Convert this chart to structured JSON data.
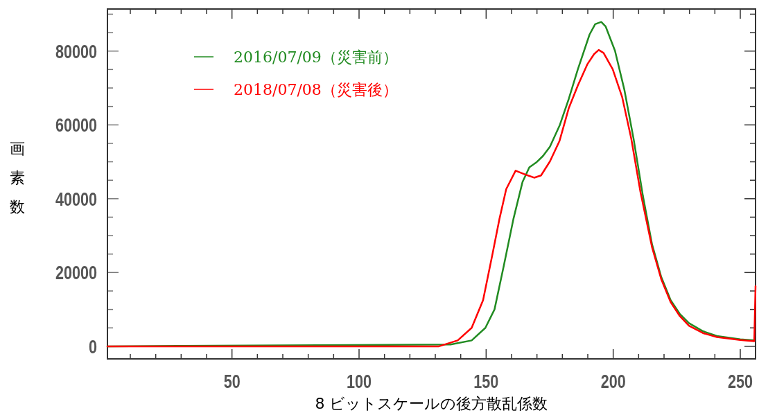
{
  "chart_data": {
    "type": "line",
    "xlabel": "8 ビットスケールの後方散乱係数",
    "ylabel": "画素数",
    "xlim": [
      1,
      256
    ],
    "ylim": [
      -3400,
      91400
    ],
    "xticks": [
      {
        "value": 10,
        "label": null
      },
      {
        "value": 20,
        "label": null
      },
      {
        "value": 30,
        "label": null
      },
      {
        "value": 40,
        "label": null
      },
      50,
      {
        "value": 60,
        "label": null
      },
      {
        "value": 70,
        "label": null
      },
      {
        "value": 80,
        "label": null
      },
      {
        "value": 90,
        "label": null
      },
      100,
      {
        "value": 110,
        "label": null
      },
      {
        "value": 120,
        "label": null
      },
      {
        "value": 130,
        "label": null
      },
      {
        "value": 140,
        "label": null
      },
      150,
      {
        "value": 160,
        "label": null
      },
      {
        "value": 170,
        "label": null
      },
      {
        "value": 180,
        "label": null
      },
      {
        "value": 190,
        "label": null
      },
      200,
      {
        "value": 210,
        "label": null
      },
      {
        "value": 220,
        "label": null
      },
      {
        "value": 230,
        "label": null
      },
      {
        "value": 240,
        "label": null
      },
      250
    ],
    "yticks": [
      0,
      {
        "value": 5000,
        "label": null
      },
      {
        "value": 10000,
        "label": null
      },
      {
        "value": 15000,
        "label": null
      },
      20000,
      {
        "value": 25000,
        "label": null
      },
      {
        "value": 30000,
        "label": null
      },
      {
        "value": 35000,
        "label": null
      },
      40000,
      {
        "value": 45000,
        "label": null
      },
      {
        "value": 50000,
        "label": null
      },
      {
        "value": 55000,
        "label": null
      },
      60000,
      {
        "value": 65000,
        "label": null
      },
      {
        "value": 70000,
        "label": null
      },
      {
        "value": 75000,
        "label": null
      },
      80000,
      {
        "value": 85000,
        "label": null
      },
      {
        "value": 90000,
        "label": null
      }
    ],
    "legend": "top left",
    "marker": "none",
    "line_style": "solid",
    "series": [
      {
        "name": "2016/07/09（災害前）",
        "color": "#218b21",
        "x": [
          1,
          136,
          144.3,
          149.7,
          153.3,
          157,
          160.7,
          164.3,
          167,
          169.7,
          172.4,
          175.1,
          178.9,
          182.5,
          186.1,
          190.7,
          192.9,
          195.3,
          197,
          200.7,
          204.4,
          208,
          211.7,
          215.3,
          218.9,
          222.6,
          226.2,
          229.8,
          235.3,
          240.8,
          250,
          255.5
        ],
        "values": [
          0,
          500,
          1600,
          5000,
          10000,
          22000,
          34400,
          44500,
          48500,
          49800,
          51600,
          54100,
          59800,
          67000,
          75100,
          84500,
          87300,
          87900,
          86700,
          80100,
          69500,
          56300,
          40700,
          27600,
          18800,
          12500,
          8800,
          6300,
          4100,
          2800,
          1900,
          1600
        ]
      },
      {
        "name": "2018/07/08（災害後）",
        "color": "#ff0000",
        "x": [
          1,
          131.4,
          138.8,
          144.3,
          148.8,
          152.5,
          155.2,
          157.9,
          161.6,
          165.2,
          168.9,
          171.6,
          175.1,
          178.9,
          182.5,
          186.1,
          189.8,
          192.5,
          194.3,
          196.2,
          199.8,
          203.5,
          207.1,
          210.7,
          215.3,
          218.9,
          222.6,
          226.2,
          229.8,
          235.3,
          240.8,
          250,
          255.5,
          256
        ],
        "values": [
          0,
          0,
          1600,
          5000,
          12500,
          25000,
          34400,
          42600,
          47600,
          46600,
          45700,
          46300,
          50100,
          55700,
          64500,
          70700,
          76400,
          79200,
          80300,
          79500,
          75100,
          67600,
          56300,
          41900,
          26800,
          18200,
          12000,
          8200,
          5600,
          3600,
          2500,
          1700,
          1400,
          16300
        ]
      }
    ]
  }
}
